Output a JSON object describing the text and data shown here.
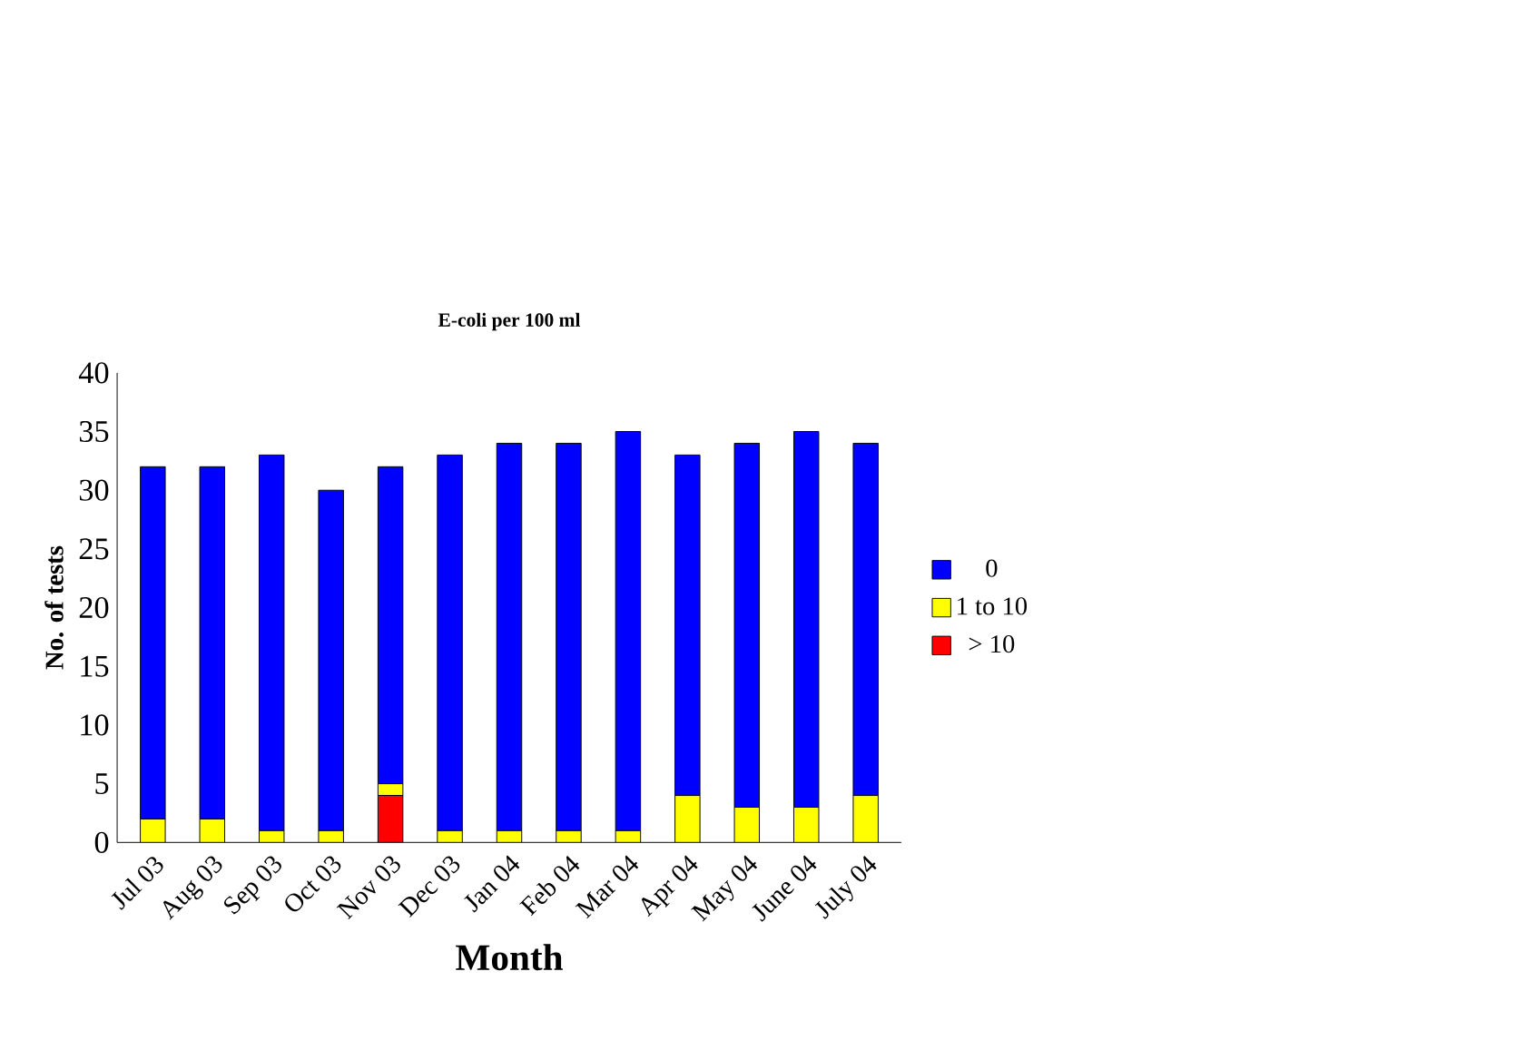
{
  "chart_data": {
    "type": "bar",
    "title": "E-coli per 100 ml",
    "xlabel": "Month",
    "ylabel": "No. of tests",
    "categories": [
      "Jul 03",
      "Aug 03",
      "Sep 03",
      "Oct 03",
      "Nov 03",
      "Dec 03",
      "Jan 04",
      "Feb 04",
      "Mar 04",
      "Apr 04",
      "May 04",
      "June 04",
      "July 04"
    ],
    "stacked": true,
    "series": [
      {
        "name": "> 10",
        "color": "#ff0000",
        "values": [
          0,
          0,
          0,
          0,
          4,
          0,
          0,
          0,
          0,
          0,
          0,
          0,
          0
        ]
      },
      {
        "name": "1 to 10",
        "color": "#ffff00",
        "values": [
          2,
          2,
          1,
          1,
          1,
          1,
          1,
          1,
          1,
          4,
          3,
          3,
          4
        ]
      },
      {
        "name": "0",
        "color": "#0000ff",
        "values": [
          30,
          30,
          32,
          29,
          27,
          32,
          33,
          33,
          34,
          29,
          31,
          32,
          30
        ]
      }
    ],
    "ylim": [
      0,
      40
    ],
    "yticks": [
      0,
      5,
      10,
      15,
      20,
      25,
      30,
      35,
      40
    ],
    "legend": "right",
    "grid": false
  }
}
